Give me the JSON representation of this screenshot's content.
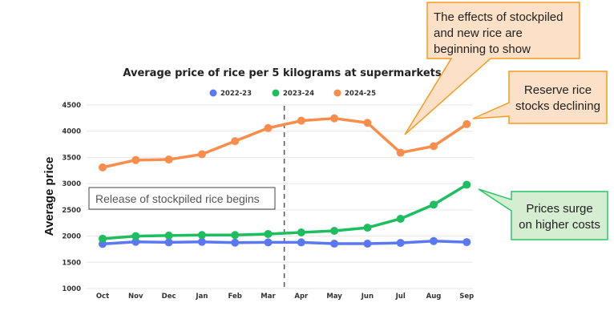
{
  "chart_data": {
    "type": "line",
    "title": "Average price of rice per 5 kilograms at supermarkets",
    "xlabel": "",
    "ylabel": "Average price",
    "categories": [
      "Oct",
      "Nov",
      "Dec",
      "Jan",
      "Feb",
      "Mar",
      "Apr",
      "May",
      "Jun",
      "Jul",
      "Aug",
      "Sep"
    ],
    "ylim": [
      1000,
      4500
    ],
    "yticks": [
      1000,
      1500,
      2000,
      2500,
      3000,
      3500,
      4000,
      4500
    ],
    "ytick_labels": [
      "1000",
      "1500",
      "2000",
      "2500",
      "3000",
      "3500",
      "4000",
      "4500"
    ],
    "grid": true,
    "legend_position": "top-center",
    "series": [
      {
        "name": "2022-23",
        "color": "#5A78F2",
        "values": [
          1850,
          1890,
          1880,
          1890,
          1875,
          1880,
          1880,
          1855,
          1855,
          1870,
          1905,
          1885
        ]
      },
      {
        "name": "2023-24",
        "color": "#1DBE60",
        "values": [
          1950,
          2000,
          2010,
          2020,
          2020,
          2040,
          2070,
          2100,
          2160,
          2330,
          2600,
          2980
        ]
      },
      {
        "name": "2024-25",
        "color": "#F98D4C",
        "values": [
          3310,
          3450,
          3460,
          3560,
          3810,
          4060,
          4200,
          4245,
          4160,
          3590,
          3715,
          4135
        ]
      }
    ],
    "annotations": {
      "marker_line": {
        "between": [
          "Mar",
          "Apr"
        ],
        "style": "dashed"
      },
      "marker_note": "Release of stockpiled rice begins",
      "callouts": [
        {
          "id": "stockpile-effect",
          "lines": [
            "The effects of stockpiled",
            "and new rice are",
            "beginning to show"
          ],
          "points_to": "Jul 2024-25",
          "fill": "#FCE0C7",
          "stroke": "#F39C1E"
        },
        {
          "id": "reserve-declining",
          "lines": [
            "Reserve rice",
            "stocks declining"
          ],
          "points_to": "Sep 2024-25",
          "fill": "#FCE0C7",
          "stroke": "#F39C1E"
        },
        {
          "id": "prices-surge",
          "lines": [
            "Prices surge",
            "on higher costs"
          ],
          "points_to": "Sep 2023-24",
          "fill": "#D5EDD0",
          "stroke": "#2CC56A"
        }
      ]
    }
  }
}
